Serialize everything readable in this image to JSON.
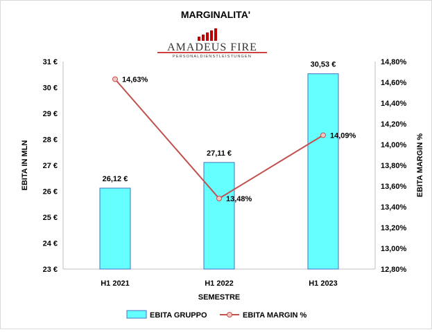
{
  "chart_data": {
    "type": "bar",
    "title": "MARGINALITA'",
    "logo": {
      "brand": "AMADEUS FIRE",
      "tagline": "PERSONALDIENSTLEISTUNGEN",
      "color": "#c00000"
    },
    "categories": [
      "H1 2021",
      "H1 2022",
      "H1 2023"
    ],
    "xlabel": "SEMESTRE",
    "ylabel": "EBITA IN MLN",
    "y2label": "EBITA MARGIN %",
    "ylim": [
      23,
      31
    ],
    "y_ticks": [
      "23 €",
      "24 €",
      "25 €",
      "26 €",
      "27 €",
      "28 €",
      "29 €",
      "30 €",
      "31 €"
    ],
    "y2lim": [
      12.8,
      14.8
    ],
    "y2_ticks": [
      "12,80%",
      "13,00%",
      "13,20%",
      "13,40%",
      "13,60%",
      "13,80%",
      "14,00%",
      "14,20%",
      "14,40%",
      "14,60%",
      "14,80%"
    ],
    "series": [
      {
        "name": "EBITA GRUPPO",
        "type": "bar",
        "axis": "left",
        "values": [
          26.12,
          27.11,
          30.53
        ],
        "labels": [
          "26,12 €",
          "27,11 €",
          "30,53 €"
        ],
        "color": "#66ffff",
        "stroke": "#4472c4"
      },
      {
        "name": "EBITA MARGIN %",
        "type": "line",
        "axis": "right",
        "values": [
          14.63,
          13.48,
          14.09
        ],
        "labels": [
          "14,63%",
          "13,48%",
          "14,09%"
        ],
        "color": "#c0504d",
        "marker_fill": "#f4c7c3"
      }
    ],
    "grid": false,
    "legend_position": "bottom"
  }
}
